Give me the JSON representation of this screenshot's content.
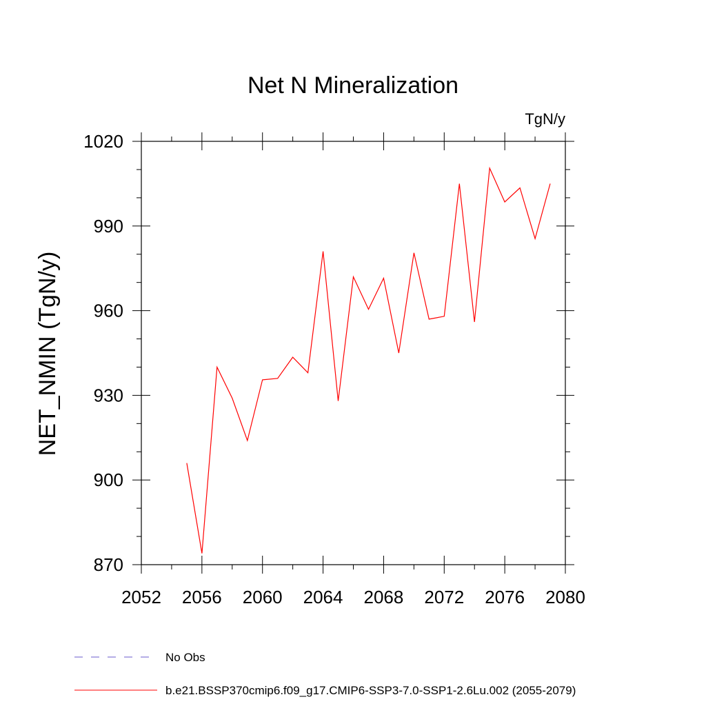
{
  "chart_data": {
    "type": "line",
    "title": "Net N Mineralization",
    "units": "TgN/y",
    "ylabel": "NET_NMIN  (TgN/y)",
    "xlabel": "",
    "xlim": [
      2052,
      2080
    ],
    "ylim": [
      870,
      1020
    ],
    "xticks": [
      2052,
      2056,
      2060,
      2064,
      2068,
      2072,
      2076,
      2080
    ],
    "yticks": [
      870,
      900,
      930,
      960,
      990,
      1020
    ],
    "grid": false,
    "legend_position": "bottom-left",
    "series": [
      {
        "name": "b.e21.BSSP370cmip6.f09_g17.CMIP6-SSP3-7.0-SSP1-2.6Lu.002 (2055-2079)",
        "color": "#ff0000",
        "style": "solid",
        "x": [
          2055,
          2056,
          2057,
          2058,
          2059,
          2060,
          2061,
          2062,
          2063,
          2064,
          2065,
          2066,
          2067,
          2068,
          2069,
          2070,
          2071,
          2072,
          2073,
          2074,
          2075,
          2076,
          2077,
          2078,
          2079
        ],
        "y": [
          906,
          874,
          940,
          929,
          914,
          935.5,
          936,
          943.5,
          938,
          981,
          928,
          972,
          960.5,
          971.5,
          945,
          980.5,
          957,
          958,
          1005,
          956,
          1010.5,
          998.5,
          1003.5,
          985.5,
          1005
        ]
      },
      {
        "name": "No Obs",
        "color": "#6a5acd",
        "style": "dashed",
        "x": [],
        "y": []
      }
    ]
  }
}
